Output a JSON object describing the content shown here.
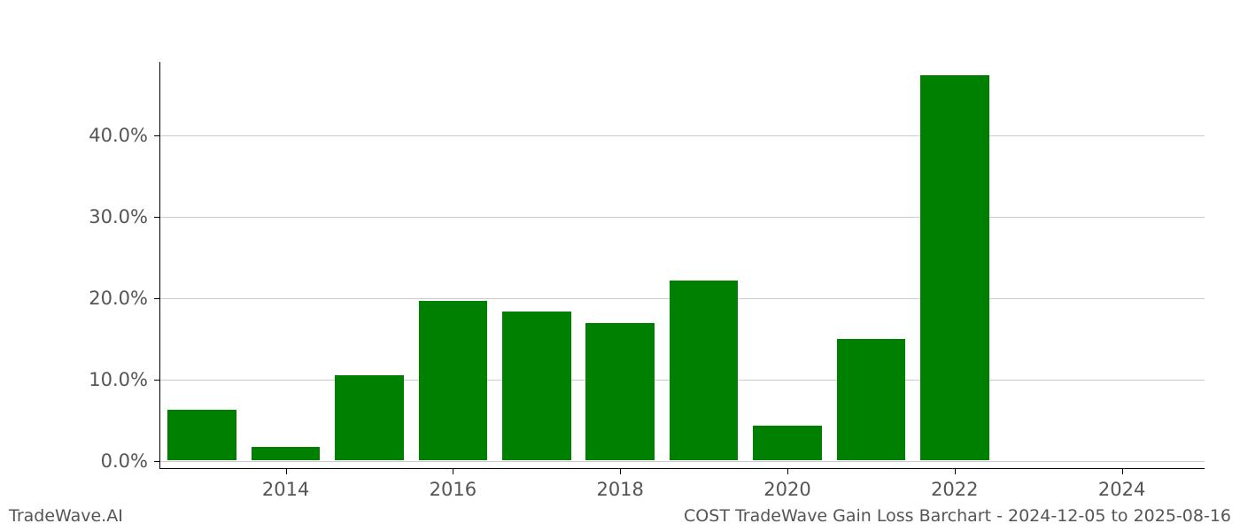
{
  "chart": {
    "type": "bar",
    "x_years": [
      2013,
      2014,
      2015,
      2016,
      2017,
      2018,
      2019,
      2020,
      2021,
      2022,
      2023,
      2024
    ],
    "values_pct": [
      6.2,
      1.6,
      10.4,
      19.5,
      18.2,
      16.8,
      22.1,
      4.2,
      14.9,
      47.3,
      0.0,
      0.0
    ],
    "bar_color": "#008000",
    "bar_width_years": 0.82,
    "background_color": "#ffffff",
    "grid_color": "#cccccc",
    "axis_color": "#000000",
    "xlim": [
      2012.5,
      2025.0
    ],
    "ylim": [
      -1.0,
      49.0
    ],
    "yticks": [
      0.0,
      10.0,
      20.0,
      30.0,
      40.0
    ],
    "ytick_labels": [
      "0.0%",
      "10.0%",
      "20.0%",
      "30.0%",
      "40.0%"
    ],
    "xticks": [
      2014,
      2016,
      2018,
      2020,
      2022,
      2024
    ],
    "xtick_labels": [
      "2014",
      "2016",
      "2018",
      "2020",
      "2022",
      "2024"
    ],
    "tick_fontsize": 21,
    "tick_color": "#555555",
    "footer_fontsize": 19
  },
  "footer": {
    "left": "TradeWave.AI",
    "right": "COST TradeWave Gain Loss Barchart - 2024-12-05 to 2025-08-16"
  }
}
